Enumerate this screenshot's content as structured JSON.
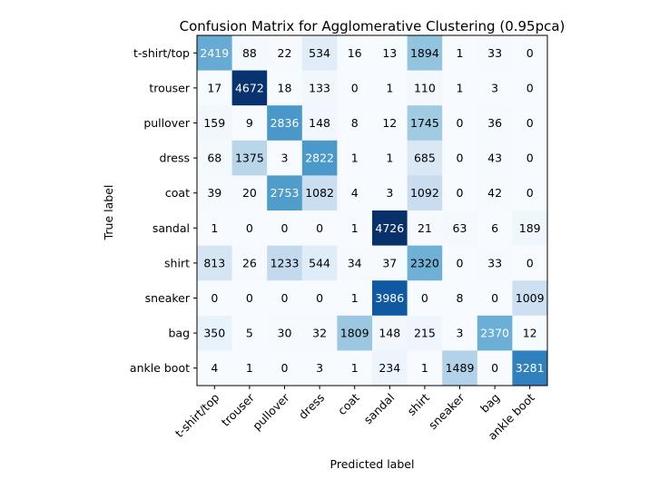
{
  "chart_data": {
    "type": "heatmap",
    "title": "Confusion Matrix for Agglomerative Clustering (0.95pca)",
    "xlabel": "Predicted label",
    "ylabel": "True label",
    "colormap": "Blues",
    "x_categories": [
      "t-shirt/top",
      "trouser",
      "pullover",
      "dress",
      "coat",
      "sandal",
      "shirt",
      "sneaker",
      "bag",
      "ankle boot"
    ],
    "y_categories": [
      "t-shirt/top",
      "trouser",
      "pullover",
      "dress",
      "coat",
      "sandal",
      "shirt",
      "sneaker",
      "bag",
      "ankle boot"
    ],
    "values": [
      [
        2419,
        88,
        22,
        534,
        16,
        13,
        1894,
        1,
        33,
        0
      ],
      [
        17,
        4672,
        18,
        133,
        0,
        1,
        110,
        1,
        3,
        0
      ],
      [
        159,
        9,
        2836,
        148,
        8,
        12,
        1745,
        0,
        36,
        0
      ],
      [
        68,
        1375,
        3,
        2822,
        1,
        1,
        685,
        0,
        43,
        0
      ],
      [
        39,
        20,
        2753,
        1082,
        4,
        3,
        1092,
        0,
        42,
        0
      ],
      [
        1,
        0,
        0,
        0,
        1,
        4726,
        21,
        63,
        6,
        189
      ],
      [
        813,
        26,
        1233,
        544,
        34,
        37,
        2320,
        0,
        33,
        0
      ],
      [
        0,
        0,
        0,
        0,
        1,
        3986,
        0,
        8,
        0,
        1009
      ],
      [
        350,
        5,
        30,
        32,
        1809,
        148,
        215,
        3,
        2370,
        12
      ],
      [
        4,
        1,
        0,
        3,
        1,
        234,
        1,
        1489,
        0,
        3281
      ]
    ]
  }
}
